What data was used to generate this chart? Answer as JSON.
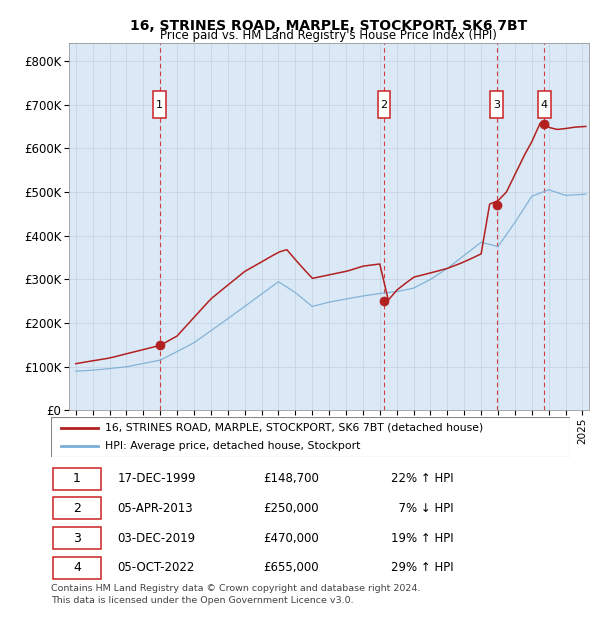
{
  "title": "16, STRINES ROAD, MARPLE, STOCKPORT, SK6 7BT",
  "subtitle": "Price paid vs. HM Land Registry's House Price Index (HPI)",
  "ylim": [
    0,
    840000
  ],
  "yticks": [
    0,
    100000,
    200000,
    300000,
    400000,
    500000,
    600000,
    700000,
    800000
  ],
  "ytick_labels": [
    "£0",
    "£100K",
    "£200K",
    "£300K",
    "£400K",
    "£500K",
    "£600K",
    "£700K",
    "£800K"
  ],
  "xlim_start": 1994.6,
  "xlim_end": 2025.4,
  "plot_bg_color": "#dbe8f5",
  "grid_color": "#c8d8e8",
  "hpi_line_color": "#7aaed4",
  "price_line_color": "#b22020",
  "sale_marker_color": "#b22020",
  "vline_color": "#cc2222",
  "transactions": [
    {
      "num": 1,
      "date_dec": 1999.96,
      "price": 148700,
      "label": "1"
    },
    {
      "num": 2,
      "date_dec": 2013.25,
      "price": 250000,
      "label": "2"
    },
    {
      "num": 3,
      "date_dec": 2019.92,
      "price": 470000,
      "label": "3"
    },
    {
      "num": 4,
      "date_dec": 2022.75,
      "price": 655000,
      "label": "4"
    }
  ],
  "table_rows": [
    {
      "num": "1",
      "date": "17-DEC-1999",
      "price": "£148,700",
      "hpi": "22% ↑ HPI"
    },
    {
      "num": "2",
      "date": "05-APR-2013",
      "price": "£250,000",
      "hpi": "  7% ↓ HPI"
    },
    {
      "num": "3",
      "date": "03-DEC-2019",
      "price": "£470,000",
      "hpi": "19% ↑ HPI"
    },
    {
      "num": "4",
      "date": "05-OCT-2022",
      "price": "£655,000",
      "hpi": "29% ↑ HPI"
    }
  ],
  "footer": "Contains HM Land Registry data © Crown copyright and database right 2024.\nThis data is licensed under the Open Government Licence v3.0.",
  "legend_line1": "16, STRINES ROAD, MARPLE, STOCKPORT, SK6 7BT (detached house)",
  "legend_line2": "HPI: Average price, detached house, Stockport"
}
